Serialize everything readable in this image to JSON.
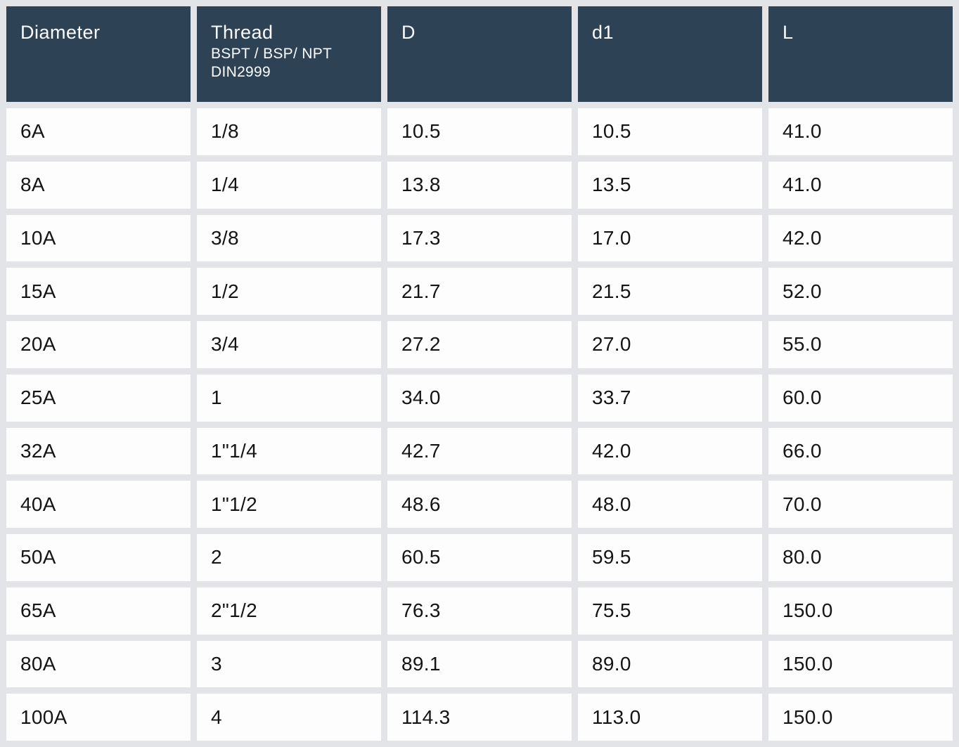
{
  "colors": {
    "header_bg": "#2e4256",
    "header_text": "#fbfcfd",
    "cell_bg": "#fdfdfe",
    "gutter_bg": "#e2e4e7",
    "body_text": "#141414"
  },
  "table": {
    "columns": [
      {
        "label": "Diameter"
      },
      {
        "label": "Thread",
        "sub1": "BSPT / BSP/ NPT",
        "sub2": "DIN2999"
      },
      {
        "label": "D"
      },
      {
        "label": "d1"
      },
      {
        "label": "L"
      }
    ],
    "rows": [
      [
        "6A",
        "1/8",
        "10.5",
        "10.5",
        "41.0"
      ],
      [
        "8A",
        "1/4",
        "13.8",
        "13.5",
        "41.0"
      ],
      [
        "10A",
        "3/8",
        "17.3",
        "17.0",
        "42.0"
      ],
      [
        "15A",
        "1/2",
        "21.7",
        "21.5",
        "52.0"
      ],
      [
        "20A",
        "3/4",
        "27.2",
        "27.0",
        "55.0"
      ],
      [
        "25A",
        "1",
        "34.0",
        "33.7",
        "60.0"
      ],
      [
        "32A",
        "1\"1/4",
        "42.7",
        "42.0",
        "66.0"
      ],
      [
        "40A",
        "1\"1/2",
        "48.6",
        "48.0",
        "70.0"
      ],
      [
        "50A",
        "2",
        "60.5",
        "59.5",
        "80.0"
      ],
      [
        "65A",
        "2\"1/2",
        "76.3",
        "75.5",
        "150.0"
      ],
      [
        "80A",
        "3",
        "89.1",
        "89.0",
        "150.0"
      ],
      [
        "100A",
        "4",
        "114.3",
        "113.0",
        "150.0"
      ]
    ]
  },
  "chart_data": {
    "type": "table",
    "title": "",
    "columns": [
      "Diameter",
      "Thread BSPT / BSP/ NPT DIN2999",
      "D",
      "d1",
      "L"
    ],
    "rows": [
      [
        "6A",
        "1/8",
        10.5,
        10.5,
        41.0
      ],
      [
        "8A",
        "1/4",
        13.8,
        13.5,
        41.0
      ],
      [
        "10A",
        "3/8",
        17.3,
        17.0,
        42.0
      ],
      [
        "15A",
        "1/2",
        21.7,
        21.5,
        52.0
      ],
      [
        "20A",
        "3/4",
        27.2,
        27.0,
        55.0
      ],
      [
        "25A",
        "1",
        34.0,
        33.7,
        60.0
      ],
      [
        "32A",
        "1\"1/4",
        42.7,
        42.0,
        66.0
      ],
      [
        "40A",
        "1\"1/2",
        48.6,
        48.0,
        70.0
      ],
      [
        "50A",
        "2",
        60.5,
        59.5,
        80.0
      ],
      [
        "65A",
        "2\"1/2",
        76.3,
        75.5,
        150.0
      ],
      [
        "80A",
        "3",
        89.1,
        89.0,
        150.0
      ],
      [
        "100A",
        "4",
        114.3,
        113.0,
        150.0
      ]
    ]
  }
}
